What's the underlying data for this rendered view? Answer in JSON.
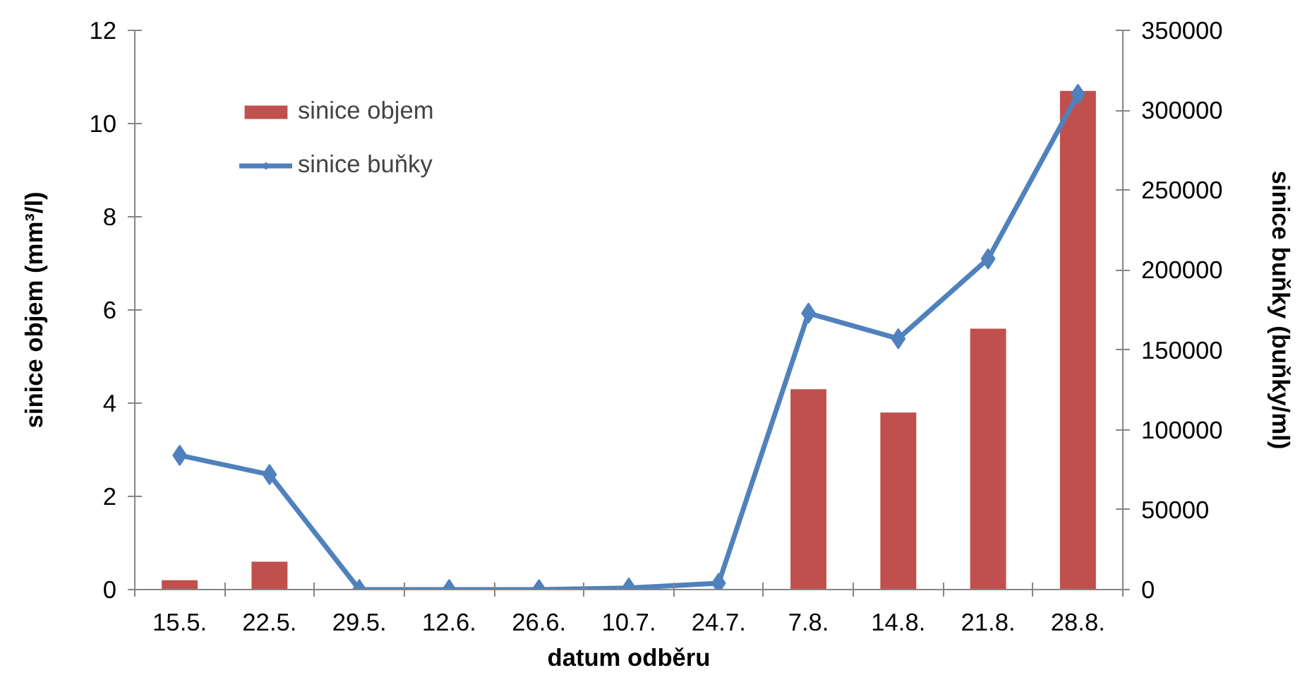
{
  "chart_data": {
    "type": "bar",
    "xlabel": "datum odběru",
    "ylabel": "sinice objem (mm³/l)",
    "y2label": "sinice buňky (buňky/ml)",
    "categories": [
      "15.5.",
      "22.5.",
      "29.5.",
      "12.6.",
      "26.6.",
      "10.7.",
      "24.7.",
      "7.8.",
      "14.8.",
      "21.8.",
      "28.8."
    ],
    "series": [
      {
        "name": "sinice objem",
        "color": "#c0504d",
        "values": [
          0.2,
          0.6,
          null,
          null,
          null,
          null,
          null,
          4.3,
          3.8,
          5.6,
          10.7
        ]
      },
      {
        "name": "sinice buňky",
        "type": "line",
        "axis": "y2",
        "color": "#4f81bd",
        "marker": "diamond",
        "values": [
          84000,
          72000,
          0,
          0,
          0,
          1000,
          4000,
          173000,
          157000,
          207000,
          310000
        ]
      }
    ],
    "ylim": [
      0,
      12
    ],
    "yticks": [
      0,
      2,
      4,
      6,
      8,
      10,
      12
    ],
    "y2lim": [
      0,
      350000
    ],
    "y2ticks": [
      0,
      50000,
      100000,
      150000,
      200000,
      250000,
      300000,
      350000
    ],
    "grid": false,
    "legend": "top left"
  }
}
